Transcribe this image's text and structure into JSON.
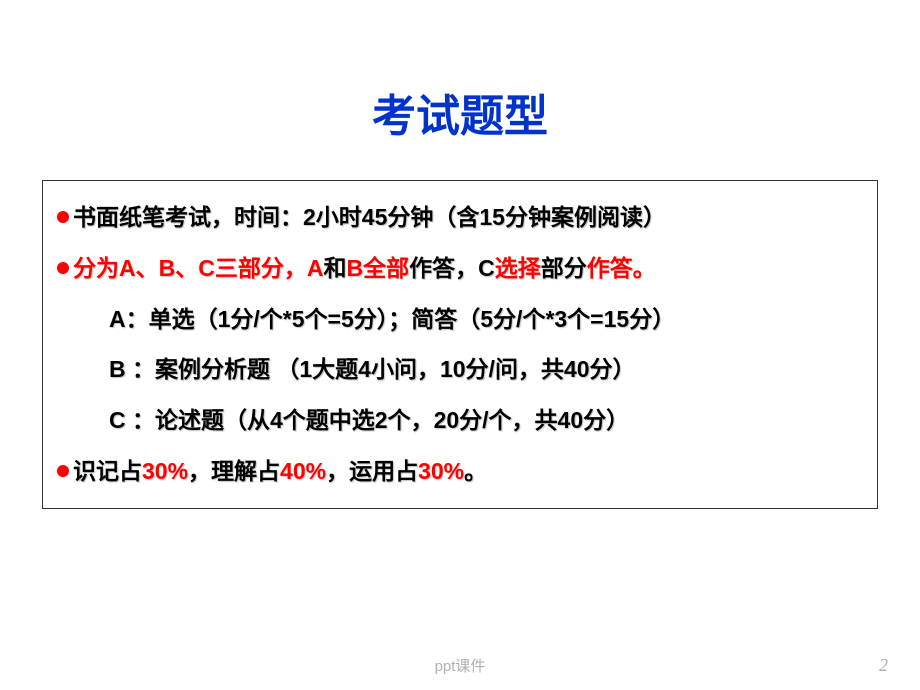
{
  "title": {
    "text": "考试题型",
    "color": "#0033cc",
    "fontsize": 44
  },
  "box": {
    "border_color": "#333333",
    "bullet_color": "#ff0000",
    "text_fontsize": 23,
    "black": "#000000",
    "red": "#ff0000"
  },
  "lines": {
    "l1": {
      "segs": [
        {
          "t": "书面纸笔考试，时间：2小时45分钟（含15分钟案例阅读）",
          "c": "black"
        }
      ],
      "bullet": true
    },
    "l2": {
      "segs": [
        {
          "t": "分为A、B、C三部分，A",
          "c": "red"
        },
        {
          "t": "和",
          "c": "black"
        },
        {
          "t": "B全部",
          "c": "red"
        },
        {
          "t": "作答，C",
          "c": "black"
        },
        {
          "t": "选择",
          "c": "red"
        },
        {
          "t": "部分",
          "c": "black"
        },
        {
          "t": "作答。",
          "c": "red"
        }
      ],
      "bullet": true
    },
    "l3": {
      "segs": [
        {
          "t": "A：单选（1分/个*5个=5分）；简答（5分/个*3个=15分）",
          "c": "black"
        }
      ],
      "bullet": false,
      "indent": true
    },
    "l4": {
      "segs": [
        {
          "t": "B ：案例分析题 （1大题4小问，10分/问，共40分）",
          "c": "black"
        }
      ],
      "bullet": false,
      "indent": true
    },
    "l5": {
      "segs": [
        {
          "t": "C ：论述题（从4个题中选2个，20分/个，共40分）",
          "c": "black"
        }
      ],
      "bullet": false,
      "indent": true
    },
    "l6": {
      "segs": [
        {
          "t": "识记占",
          "c": "black"
        },
        {
          "t": "30%",
          "c": "red"
        },
        {
          "t": "，理解占",
          "c": "black"
        },
        {
          "t": "40%",
          "c": "red"
        },
        {
          "t": "，运用占",
          "c": "black"
        },
        {
          "t": "30%",
          "c": "red"
        },
        {
          "t": "。",
          "c": "black"
        }
      ],
      "bullet": true
    }
  },
  "footer": {
    "label": "ppt课件",
    "page": "2",
    "color": "#b0b0b0"
  }
}
